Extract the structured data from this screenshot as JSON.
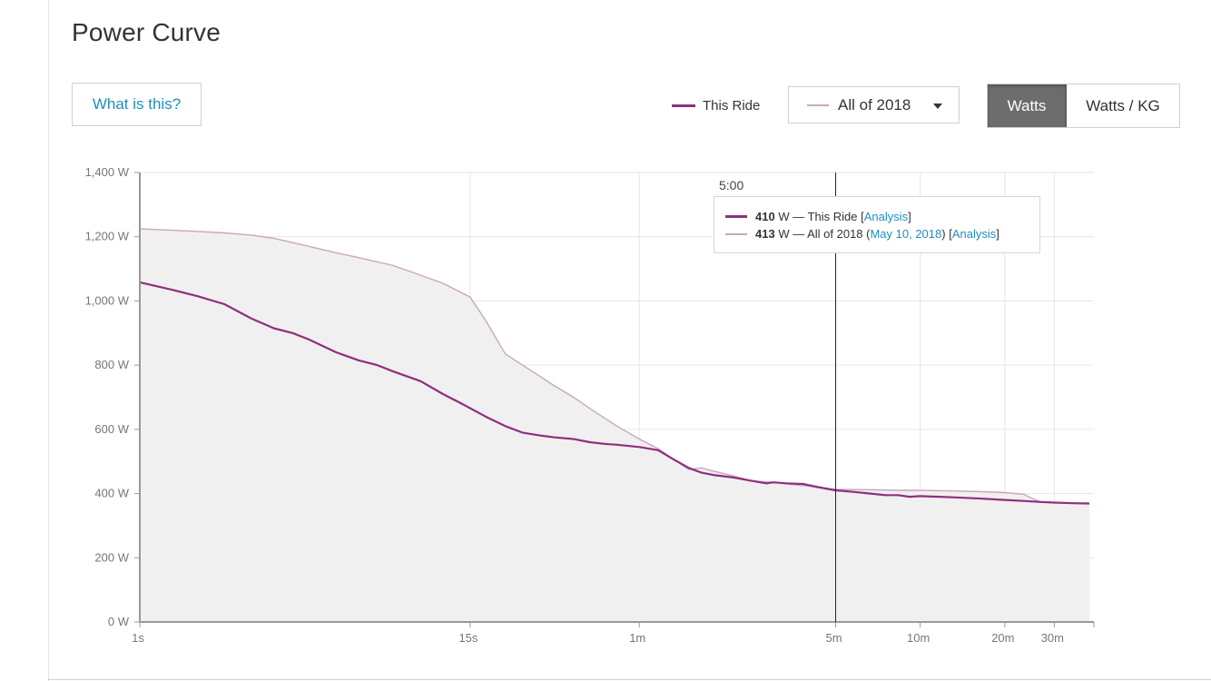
{
  "page": {
    "title": "Power Curve"
  },
  "controls": {
    "help_label": "What is this?",
    "legend_ride_label": "This Ride",
    "compare_selected": "All of 2018",
    "unit_options": [
      "Watts",
      "Watts / KG"
    ],
    "unit_active": "Watts"
  },
  "tooltip": {
    "time": "5:00",
    "ride_value": "410",
    "ride_text": " W — This Ride [",
    "ride_link": "Analysis",
    "ride_close": "]",
    "year_value": "413",
    "year_text": " W — All of 2018 (",
    "year_date_link": "May 10, 2018",
    "year_mid": ") [",
    "year_link": "Analysis",
    "year_close": "]"
  },
  "colors": {
    "ride": "#8e2f7d",
    "year": "#c9a6bc",
    "fill": "#f0f0f0",
    "link": "#1f8fbd"
  },
  "chart_data": {
    "type": "line",
    "x_scale": "log",
    "x_unit": "seconds",
    "xlim": [
      1,
      2400
    ],
    "ylim": [
      0,
      1400
    ],
    "yticks": [
      {
        "v": 0,
        "label": "0 W"
      },
      {
        "v": 200,
        "label": "200 W"
      },
      {
        "v": 400,
        "label": "400 W"
      },
      {
        "v": 600,
        "label": "600 W"
      },
      {
        "v": 800,
        "label": "800 W"
      },
      {
        "v": 1000,
        "label": "1,000 W"
      },
      {
        "v": 1200,
        "label": "1,200 W"
      },
      {
        "v": 1400,
        "label": "1,400 W"
      }
    ],
    "xticks": [
      {
        "v": 1,
        "label": "1s"
      },
      {
        "v": 15,
        "label": "15s"
      },
      {
        "v": 60,
        "label": "1m"
      },
      {
        "v": 300,
        "label": "5m"
      },
      {
        "v": 600,
        "label": "10m"
      },
      {
        "v": 1200,
        "label": "20m"
      },
      {
        "v": 1800,
        "label": "30m"
      }
    ],
    "grid": true,
    "cursor_x": 300,
    "series": [
      {
        "name": "All of 2018",
        "points": [
          [
            1,
            1225
          ],
          [
            1.5,
            1218
          ],
          [
            2,
            1212
          ],
          [
            2.5,
            1205
          ],
          [
            3,
            1195
          ],
          [
            4,
            1170
          ],
          [
            5,
            1150
          ],
          [
            6,
            1135
          ],
          [
            8,
            1110
          ],
          [
            10,
            1080
          ],
          [
            12,
            1055
          ],
          [
            15,
            1012
          ],
          [
            17,
            940
          ],
          [
            20,
            835
          ],
          [
            25,
            780
          ],
          [
            30,
            735
          ],
          [
            35,
            700
          ],
          [
            40,
            665
          ],
          [
            50,
            610
          ],
          [
            60,
            570
          ],
          [
            70,
            540
          ],
          [
            80,
            505
          ],
          [
            90,
            475
          ],
          [
            100,
            480
          ],
          [
            110,
            470
          ],
          [
            130,
            455
          ],
          [
            150,
            440
          ],
          [
            180,
            435
          ],
          [
            210,
            428
          ],
          [
            240,
            423
          ],
          [
            270,
            417
          ],
          [
            300,
            413
          ],
          [
            400,
            412
          ],
          [
            500,
            410
          ],
          [
            600,
            410
          ],
          [
            800,
            408
          ],
          [
            1000,
            406
          ],
          [
            1200,
            403
          ],
          [
            1400,
            398
          ],
          [
            1500,
            385
          ],
          [
            1600,
            375
          ],
          [
            1800,
            372
          ],
          [
            2100,
            370
          ],
          [
            2400,
            368
          ]
        ]
      },
      {
        "name": "This Ride",
        "points": [
          [
            1,
            1058
          ],
          [
            1.3,
            1035
          ],
          [
            1.6,
            1015
          ],
          [
            2,
            990
          ],
          [
            2.5,
            945
          ],
          [
            3,
            915
          ],
          [
            3.5,
            900
          ],
          [
            4,
            880
          ],
          [
            5,
            840
          ],
          [
            6,
            815
          ],
          [
            7,
            800
          ],
          [
            8,
            780
          ],
          [
            10,
            750
          ],
          [
            12,
            710
          ],
          [
            14,
            680
          ],
          [
            17,
            640
          ],
          [
            20,
            610
          ],
          [
            23,
            590
          ],
          [
            27,
            580
          ],
          [
            30,
            575
          ],
          [
            35,
            570
          ],
          [
            40,
            560
          ],
          [
            45,
            555
          ],
          [
            50,
            552
          ],
          [
            60,
            545
          ],
          [
            70,
            535
          ],
          [
            80,
            505
          ],
          [
            90,
            480
          ],
          [
            100,
            465
          ],
          [
            110,
            458
          ],
          [
            130,
            450
          ],
          [
            150,
            440
          ],
          [
            170,
            432
          ],
          [
            180,
            435
          ],
          [
            200,
            432
          ],
          [
            230,
            430
          ],
          [
            260,
            420
          ],
          [
            300,
            410
          ],
          [
            350,
            405
          ],
          [
            400,
            400
          ],
          [
            450,
            395
          ],
          [
            500,
            395
          ],
          [
            550,
            390
          ],
          [
            600,
            392
          ],
          [
            700,
            390
          ],
          [
            800,
            388
          ],
          [
            1000,
            384
          ],
          [
            1200,
            380
          ],
          [
            1400,
            377
          ],
          [
            1600,
            374
          ],
          [
            1800,
            372
          ],
          [
            2100,
            370
          ],
          [
            2400,
            369
          ]
        ]
      }
    ]
  }
}
